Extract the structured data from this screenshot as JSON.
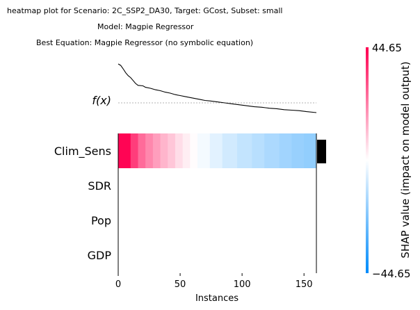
{
  "title_lines": [
    "heatmap plot for Scenario: 2C_SSP2_DA30, Target: GCost, Subset: small",
    "Model: Magpie Regressor",
    "Best Equation: Magpie Regressor (no symbolic equation)"
  ],
  "chart_data": {
    "type": "heatmap",
    "features": [
      "Clim_Sens",
      "SDR",
      "Pop",
      "GDP"
    ],
    "fx_label": "f(x)",
    "xlabel": "Instances",
    "xlim": [
      0,
      160
    ],
    "x_ticks": [
      0,
      50,
      100,
      150
    ],
    "colorbar": {
      "label": "SHAP value (impact on model output)",
      "max_label": "44.65",
      "min_label": "−44.65",
      "vmin": -44.65,
      "vmax": 44.65,
      "colors": [
        "#008bfb",
        "#ffffff",
        "#ff0051"
      ]
    },
    "n_instances": 160,
    "clim_sens_segments": [
      {
        "start": 0,
        "end": 10,
        "value": 44.0
      },
      {
        "start": 10,
        "end": 16,
        "value": 34.0
      },
      {
        "start": 16,
        "end": 22,
        "value": 26.0
      },
      {
        "start": 22,
        "end": 28,
        "value": 21.0
      },
      {
        "start": 28,
        "end": 34,
        "value": 17.0
      },
      {
        "start": 34,
        "end": 40,
        "value": 13.0
      },
      {
        "start": 40,
        "end": 46,
        "value": 10.0
      },
      {
        "start": 46,
        "end": 52,
        "value": 6.0
      },
      {
        "start": 52,
        "end": 58,
        "value": 3.0
      },
      {
        "start": 58,
        "end": 64,
        "value": 0.5
      },
      {
        "start": 64,
        "end": 74,
        "value": -2.0
      },
      {
        "start": 74,
        "end": 84,
        "value": -5.0
      },
      {
        "start": 84,
        "end": 96,
        "value": -8.0
      },
      {
        "start": 96,
        "end": 108,
        "value": -10.5
      },
      {
        "start": 108,
        "end": 118,
        "value": -12.5
      },
      {
        "start": 118,
        "end": 130,
        "value": -14.5
      },
      {
        "start": 130,
        "end": 140,
        "value": -16.5
      },
      {
        "start": 140,
        "end": 150,
        "value": -18.0
      },
      {
        "start": 150,
        "end": 160,
        "value": -19.0
      }
    ],
    "feature_importance": [
      1.0,
      0,
      0,
      0
    ],
    "fx_values": [
      [
        0,
        1.0
      ],
      [
        2,
        0.97
      ],
      [
        4,
        0.9
      ],
      [
        6,
        0.82
      ],
      [
        8,
        0.76
      ],
      [
        10,
        0.72
      ],
      [
        12,
        0.66
      ],
      [
        14,
        0.6
      ],
      [
        16,
        0.56
      ],
      [
        20,
        0.55
      ],
      [
        22,
        0.52
      ],
      [
        26,
        0.5
      ],
      [
        30,
        0.47
      ],
      [
        34,
        0.45
      ],
      [
        38,
        0.42
      ],
      [
        42,
        0.4
      ],
      [
        46,
        0.37
      ],
      [
        50,
        0.35
      ],
      [
        54,
        0.33
      ],
      [
        58,
        0.31
      ],
      [
        62,
        0.29
      ],
      [
        66,
        0.27
      ],
      [
        70,
        0.25
      ],
      [
        74,
        0.24
      ],
      [
        80,
        0.22
      ],
      [
        86,
        0.2
      ],
      [
        92,
        0.18
      ],
      [
        98,
        0.16
      ],
      [
        104,
        0.14
      ],
      [
        110,
        0.12
      ],
      [
        116,
        0.11
      ],
      [
        122,
        0.09
      ],
      [
        128,
        0.08
      ],
      [
        134,
        0.06
      ],
      [
        140,
        0.05
      ],
      [
        146,
        0.04
      ],
      [
        152,
        0.02
      ],
      [
        160,
        0.0
      ]
    ],
    "fx_base_value": 0.2
  }
}
